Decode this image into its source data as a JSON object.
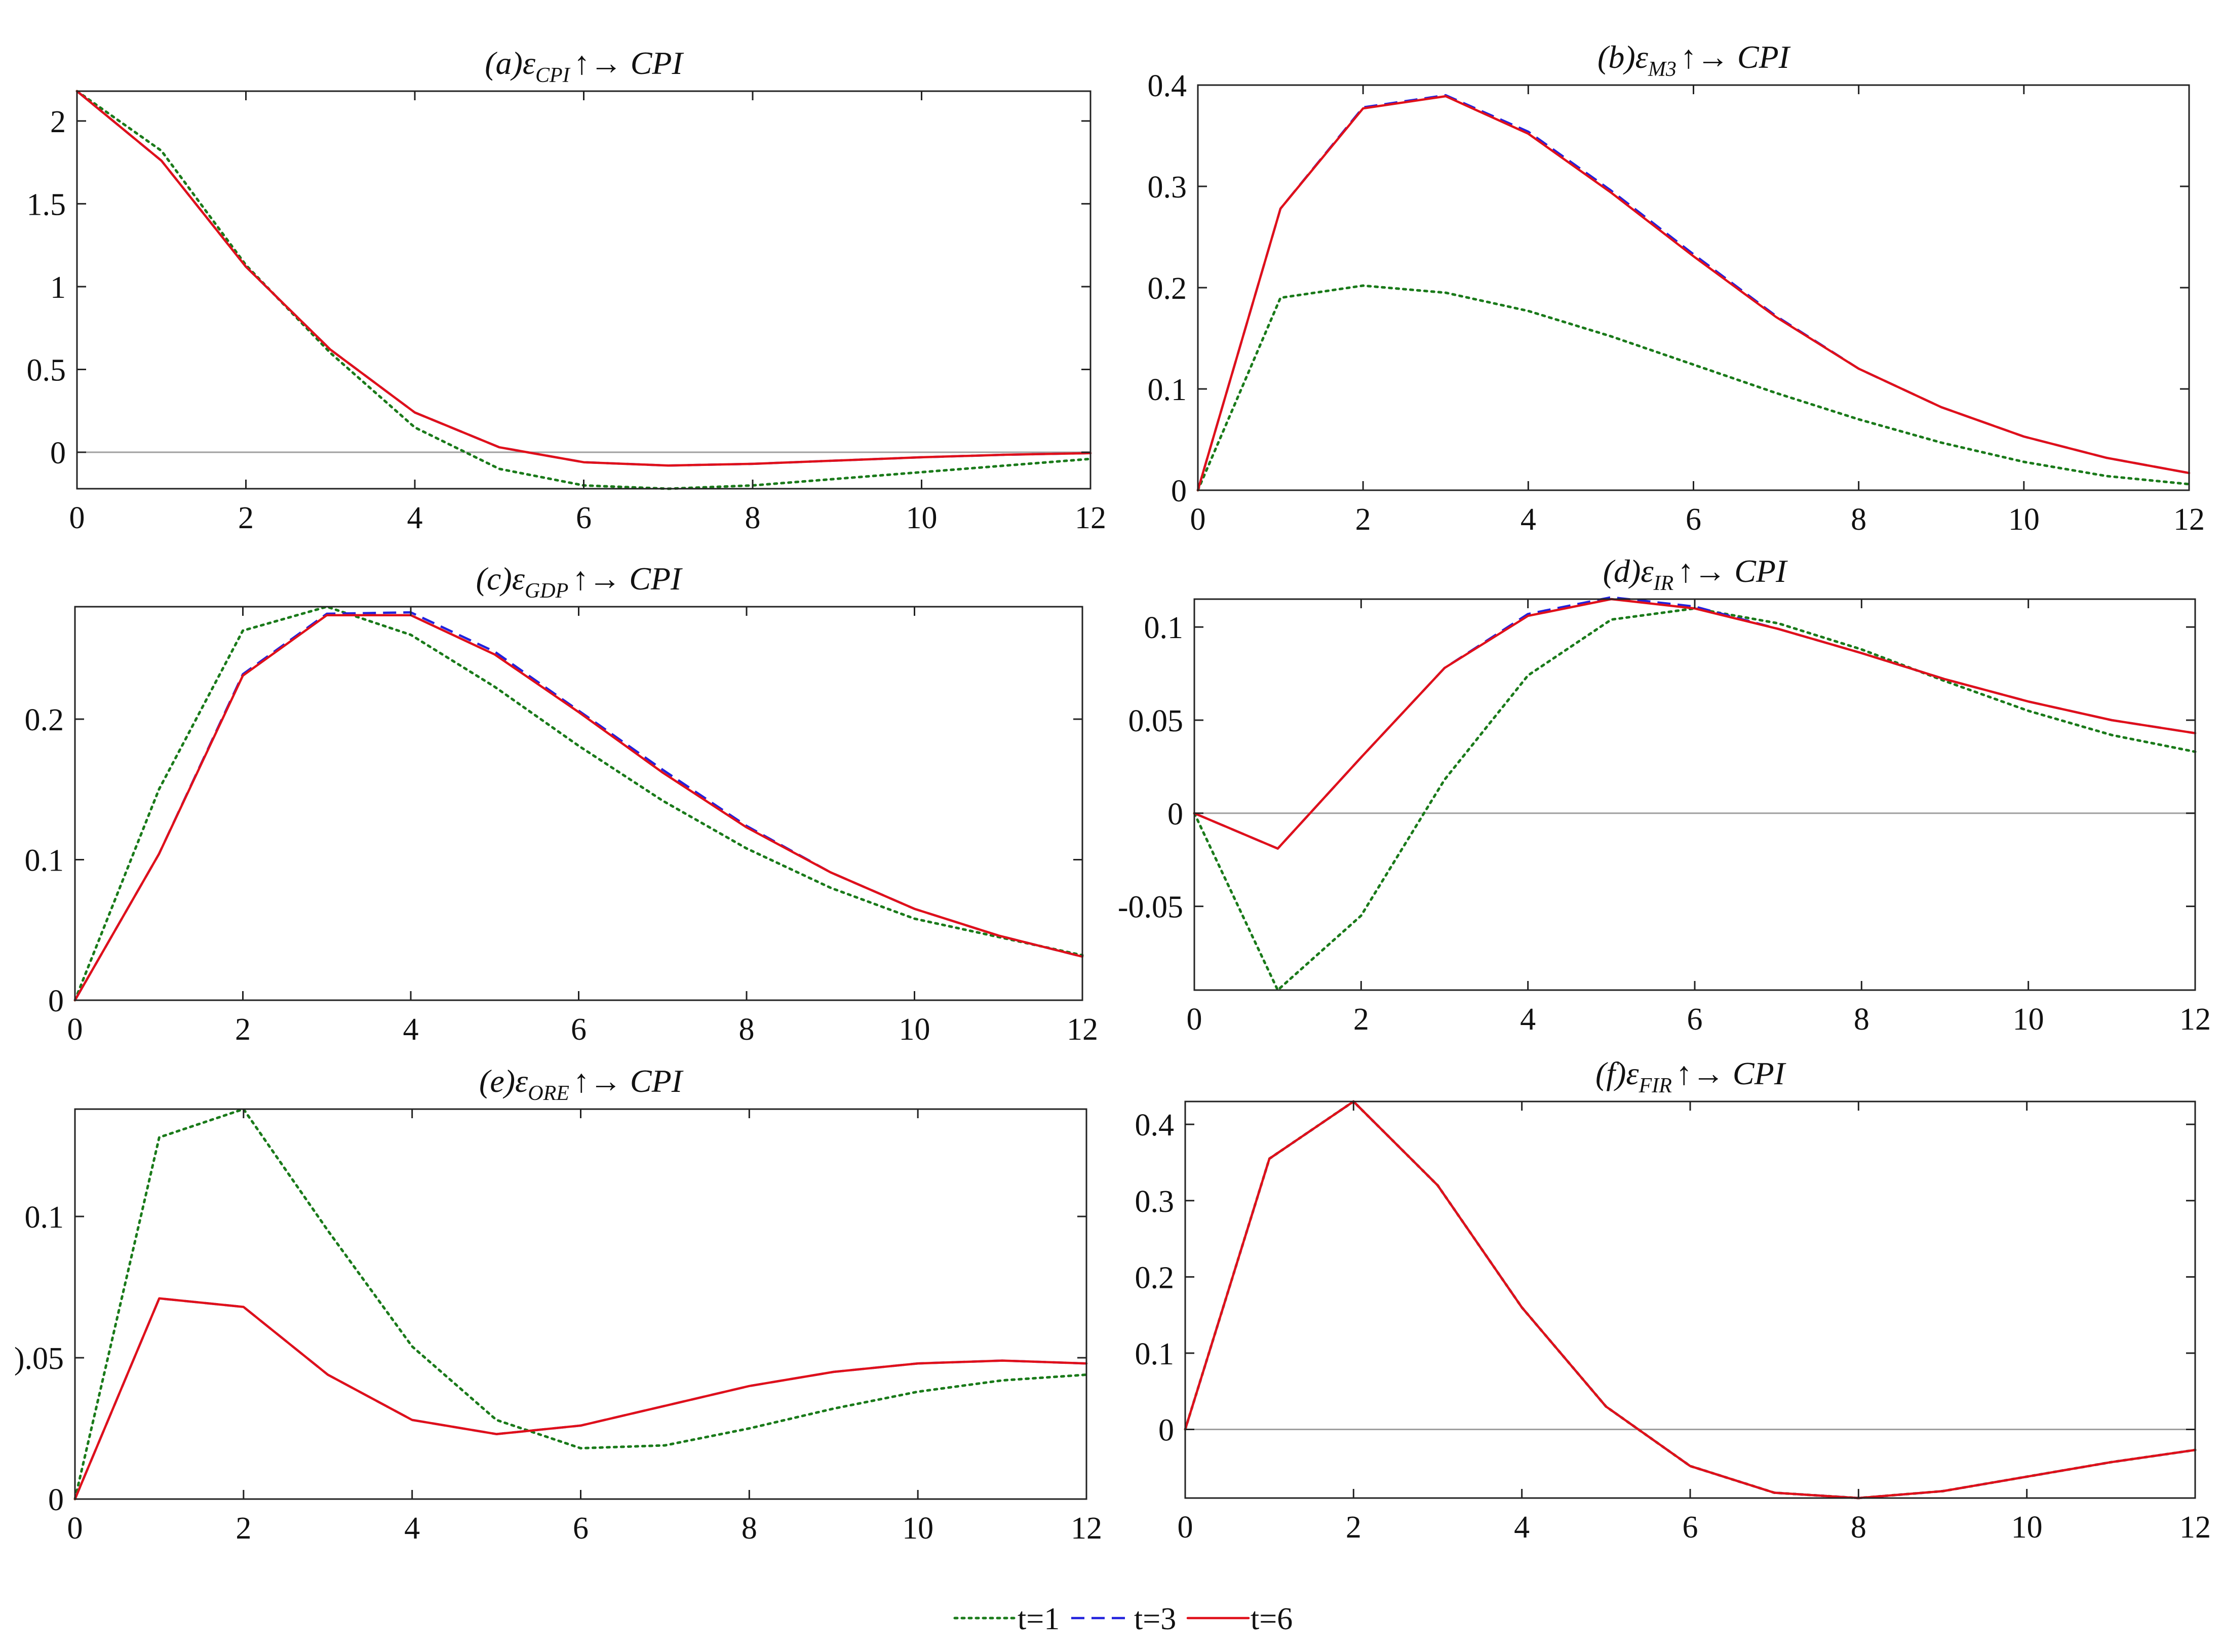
{
  "chart_data": [
    {
      "type": "line",
      "title": {
        "pre": "(a)ε",
        "sub": "CPI",
        "post": "↑→ CPI"
      },
      "xlabel": "",
      "ylabel": "",
      "xlim": [
        0,
        12
      ],
      "ylim": [
        -0.22,
        2.18
      ],
      "xticks": [
        0,
        2,
        4,
        6,
        8,
        10,
        12
      ],
      "yticks": [
        0,
        0.5,
        1,
        1.5,
        2
      ],
      "yticklabels": [
        "0",
        "0.5",
        "1",
        "1.5",
        "2"
      ],
      "zero_line": true,
      "x": [
        0,
        1,
        2,
        3,
        4,
        5,
        6,
        7,
        8,
        9,
        10,
        11,
        12
      ],
      "series": [
        {
          "name": "t=1",
          "values": [
            2.18,
            1.82,
            1.13,
            0.6,
            0.15,
            -0.1,
            -0.2,
            -0.22,
            -0.2,
            -0.16,
            -0.12,
            -0.08,
            -0.04
          ]
        },
        {
          "name": "t=3",
          "values": [
            2.18,
            1.76,
            1.12,
            0.62,
            0.24,
            0.03,
            -0.06,
            -0.08,
            -0.07,
            -0.05,
            -0.03,
            -0.015,
            -0.005
          ]
        },
        {
          "name": "t=6",
          "values": [
            2.18,
            1.76,
            1.12,
            0.62,
            0.24,
            0.03,
            -0.06,
            -0.08,
            -0.07,
            -0.05,
            -0.03,
            -0.015,
            -0.005
          ]
        }
      ]
    },
    {
      "type": "line",
      "title": {
        "pre": "(b)ε",
        "sub": "M3",
        "post": "↑→ CPI"
      },
      "xlabel": "",
      "ylabel": "",
      "xlim": [
        0,
        12
      ],
      "ylim": [
        0,
        0.4
      ],
      "xticks": [
        0,
        2,
        4,
        6,
        8,
        10,
        12
      ],
      "yticks": [
        0,
        0.1,
        0.2,
        0.3,
        0.4
      ],
      "yticklabels": [
        "0",
        "0.1",
        "0.2",
        "0.3",
        "0.4"
      ],
      "zero_line": false,
      "x": [
        0,
        1,
        2,
        3,
        4,
        5,
        6,
        7,
        8,
        9,
        10,
        11,
        12
      ],
      "series": [
        {
          "name": "t=1",
          "values": [
            0,
            0.19,
            0.202,
            0.195,
            0.177,
            0.152,
            0.124,
            0.096,
            0.07,
            0.047,
            0.028,
            0.014,
            0.006
          ]
        },
        {
          "name": "t=3",
          "values": [
            0,
            0.278,
            0.378,
            0.39,
            0.354,
            0.296,
            0.233,
            0.172,
            0.12,
            0.082,
            0.053,
            0.032,
            0.017
          ]
        },
        {
          "name": "t=6",
          "values": [
            0,
            0.278,
            0.377,
            0.389,
            0.352,
            0.294,
            0.231,
            0.171,
            0.12,
            0.082,
            0.053,
            0.032,
            0.017
          ]
        }
      ]
    },
    {
      "type": "line",
      "title": {
        "pre": "(c)ε",
        "sub": "GDP",
        "post": "↑→ CPI"
      },
      "xlabel": "",
      "ylabel": "",
      "xlim": [
        0,
        12
      ],
      "ylim": [
        0,
        0.28
      ],
      "xticks": [
        0,
        2,
        4,
        6,
        8,
        10,
        12
      ],
      "yticks": [
        0,
        0.1,
        0.2
      ],
      "yticklabels": [
        "0",
        "0.1",
        "0.2"
      ],
      "zero_line": false,
      "x": [
        0,
        1,
        2,
        3,
        4,
        5,
        6,
        7,
        8,
        9,
        10,
        11,
        12
      ],
      "series": [
        {
          "name": "t=1",
          "values": [
            0,
            0.15,
            0.263,
            0.28,
            0.26,
            0.223,
            0.181,
            0.142,
            0.108,
            0.08,
            0.058,
            0.045,
            0.032
          ]
        },
        {
          "name": "t=3",
          "values": [
            0,
            0.104,
            0.232,
            0.275,
            0.276,
            0.248,
            0.206,
            0.164,
            0.124,
            0.091,
            0.065,
            0.046,
            0.031
          ]
        },
        {
          "name": "t=6",
          "values": [
            0,
            0.104,
            0.231,
            0.274,
            0.274,
            0.246,
            0.205,
            0.162,
            0.123,
            0.091,
            0.065,
            0.046,
            0.031
          ]
        }
      ]
    },
    {
      "type": "line",
      "title": {
        "pre": "(d)ε",
        "sub": "IR",
        "post": "↑→ CPI"
      },
      "xlabel": "",
      "ylabel": "",
      "xlim": [
        0,
        12
      ],
      "ylim": [
        -0.095,
        0.115
      ],
      "xticks": [
        0,
        2,
        4,
        6,
        8,
        10,
        12
      ],
      "yticks": [
        -0.05,
        0,
        0.05,
        0.1
      ],
      "yticklabels": [
        "-0.05",
        "0",
        "0.05",
        "0.1"
      ],
      "zero_line": true,
      "x": [
        0,
        1,
        2,
        3,
        4,
        5,
        6,
        7,
        8,
        9,
        10,
        11,
        12
      ],
      "series": [
        {
          "name": "t=1",
          "values": [
            0,
            -0.095,
            -0.055,
            0.018,
            0.074,
            0.104,
            0.11,
            0.102,
            0.088,
            0.071,
            0.055,
            0.042,
            0.033
          ]
        },
        {
          "name": "t=3",
          "values": [
            0,
            -0.019,
            0.03,
            0.078,
            0.107,
            0.116,
            0.111,
            0.099,
            0.086,
            0.072,
            0.06,
            0.05,
            0.043
          ]
        },
        {
          "name": "t=6",
          "values": [
            0,
            -0.019,
            0.03,
            0.078,
            0.106,
            0.115,
            0.11,
            0.099,
            0.086,
            0.072,
            0.06,
            0.05,
            0.043
          ]
        }
      ]
    },
    {
      "type": "line",
      "title": {
        "pre": "(e)ε",
        "sub": "ORE",
        "post": "↑→ CPI"
      },
      "xlabel": "",
      "ylabel": "",
      "xlim": [
        0,
        12
      ],
      "ylim": [
        0,
        0.138
      ],
      "xticks": [
        0,
        2,
        4,
        6,
        8,
        10,
        12
      ],
      "yticks": [
        0,
        0.05,
        0.1
      ],
      "yticklabels": [
        "0",
        ").05",
        "0.1"
      ],
      "zero_line": false,
      "x": [
        0,
        1,
        2,
        3,
        4,
        5,
        6,
        7,
        8,
        9,
        10,
        11,
        12
      ],
      "series": [
        {
          "name": "t=1",
          "values": [
            0,
            0.128,
            0.138,
            0.095,
            0.054,
            0.028,
            0.018,
            0.019,
            0.025,
            0.032,
            0.038,
            0.042,
            0.044
          ]
        },
        {
          "name": "t=3",
          "values": [
            0,
            0.071,
            0.068,
            0.044,
            0.028,
            0.023,
            0.026,
            0.033,
            0.04,
            0.045,
            0.048,
            0.049,
            0.048
          ]
        },
        {
          "name": "t=6",
          "values": [
            0,
            0.071,
            0.068,
            0.044,
            0.028,
            0.023,
            0.026,
            0.033,
            0.04,
            0.045,
            0.048,
            0.049,
            0.048
          ]
        }
      ]
    },
    {
      "type": "line",
      "title": {
        "pre": "(f)ε",
        "sub": "FIR",
        "post": "↑→ CPI"
      },
      "xlabel": "",
      "ylabel": "",
      "xlim": [
        0,
        12
      ],
      "ylim": [
        -0.09,
        0.43
      ],
      "xticks": [
        0,
        2,
        4,
        6,
        8,
        10,
        12
      ],
      "yticks": [
        0,
        0.1,
        0.2,
        0.3,
        0.4
      ],
      "yticklabels": [
        "0",
        "0.1",
        "0.2",
        "0.3",
        "0.4"
      ],
      "zero_line": true,
      "x": [
        0,
        1,
        2,
        3,
        4,
        5,
        6,
        7,
        8,
        9,
        10,
        11,
        12
      ],
      "series": [
        {
          "name": "t=1",
          "values": [
            0,
            0.355,
            0.43,
            0.32,
            0.16,
            0.03,
            -0.048,
            -0.083,
            -0.09,
            -0.081,
            -0.062,
            -0.043,
            -0.027
          ]
        },
        {
          "name": "t=3",
          "values": [
            0,
            0.355,
            0.43,
            0.32,
            0.16,
            0.03,
            -0.048,
            -0.083,
            -0.09,
            -0.081,
            -0.062,
            -0.043,
            -0.027
          ]
        },
        {
          "name": "t=6",
          "values": [
            0,
            0.355,
            0.43,
            0.32,
            0.16,
            0.03,
            -0.048,
            -0.083,
            -0.09,
            -0.081,
            -0.062,
            -0.043,
            -0.027
          ]
        }
      ]
    }
  ],
  "legend": {
    "placement": "bottom-center",
    "entries": [
      {
        "label": "t=1",
        "color": "#1a7a1a",
        "style": "dotted"
      },
      {
        "label": "t=3",
        "color": "#2222dd",
        "style": "dashed"
      },
      {
        "label": "t=6",
        "color": "#e0101a",
        "style": "solid"
      }
    ]
  }
}
